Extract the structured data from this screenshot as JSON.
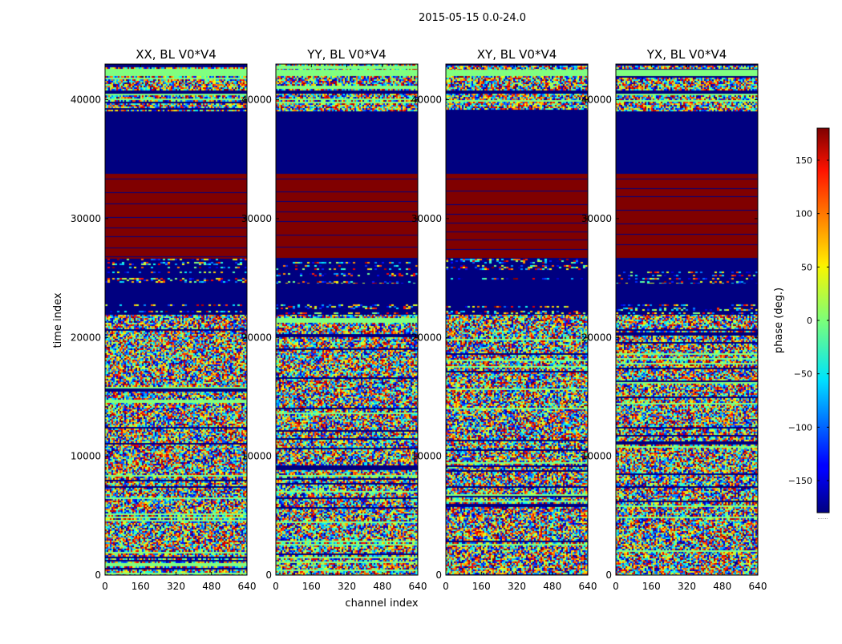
{
  "chart_data": {
    "type": "heatmap",
    "suptitle": "2015-05-15 0.0-24.0",
    "xlabel": "channel index",
    "ylabel": "time index",
    "xlim": [
      0,
      640
    ],
    "ylim": [
      0,
      43000
    ],
    "xticks": [
      0,
      160,
      320,
      480,
      640
    ],
    "yticks": [
      0,
      10000,
      20000,
      30000,
      40000
    ],
    "colormap": "jet",
    "colorbar": {
      "label": "phase (deg.)",
      "range": [
        -180,
        180
      ],
      "ticks": [
        150,
        100,
        50,
        0,
        -50,
        -100,
        -150
      ],
      "tick_labels": [
        "150",
        "100",
        "50",
        "0",
        "−50",
        "−100",
        "−150"
      ],
      "footer_text": "......"
    },
    "panels": [
      {
        "title": "XX, BL V0*V4",
        "polarization": "XX"
      },
      {
        "title": "YY, BL V0*V4",
        "polarization": "YY"
      },
      {
        "title": "XY, BL V0*V4",
        "polarization": "XY"
      },
      {
        "title": "YX, BL V0*V4",
        "polarization": "YX"
      }
    ],
    "bands": [
      {
        "from": 42500,
        "to": 43000,
        "kind": "noise"
      },
      {
        "from": 42000,
        "to": 42500,
        "kind": "solid",
        "phase": 0
      },
      {
        "from": 40800,
        "to": 42000,
        "kind": "noise"
      },
      {
        "from": 40500,
        "to": 40800,
        "kind": "solid",
        "phase": -180
      },
      {
        "from": 39000,
        "to": 40500,
        "kind": "noise"
      },
      {
        "from": 33800,
        "to": 39000,
        "kind": "solid",
        "phase": -180
      },
      {
        "from": 26600,
        "to": 33800,
        "kind": "solid",
        "phase": 180
      },
      {
        "from": 24500,
        "to": 26600,
        "kind": "striped"
      },
      {
        "from": 22800,
        "to": 24500,
        "kind": "solid",
        "phase": -180
      },
      {
        "from": 21900,
        "to": 22800,
        "kind": "striped"
      },
      {
        "from": 0,
        "to": 21900,
        "kind": "noise"
      }
    ]
  }
}
